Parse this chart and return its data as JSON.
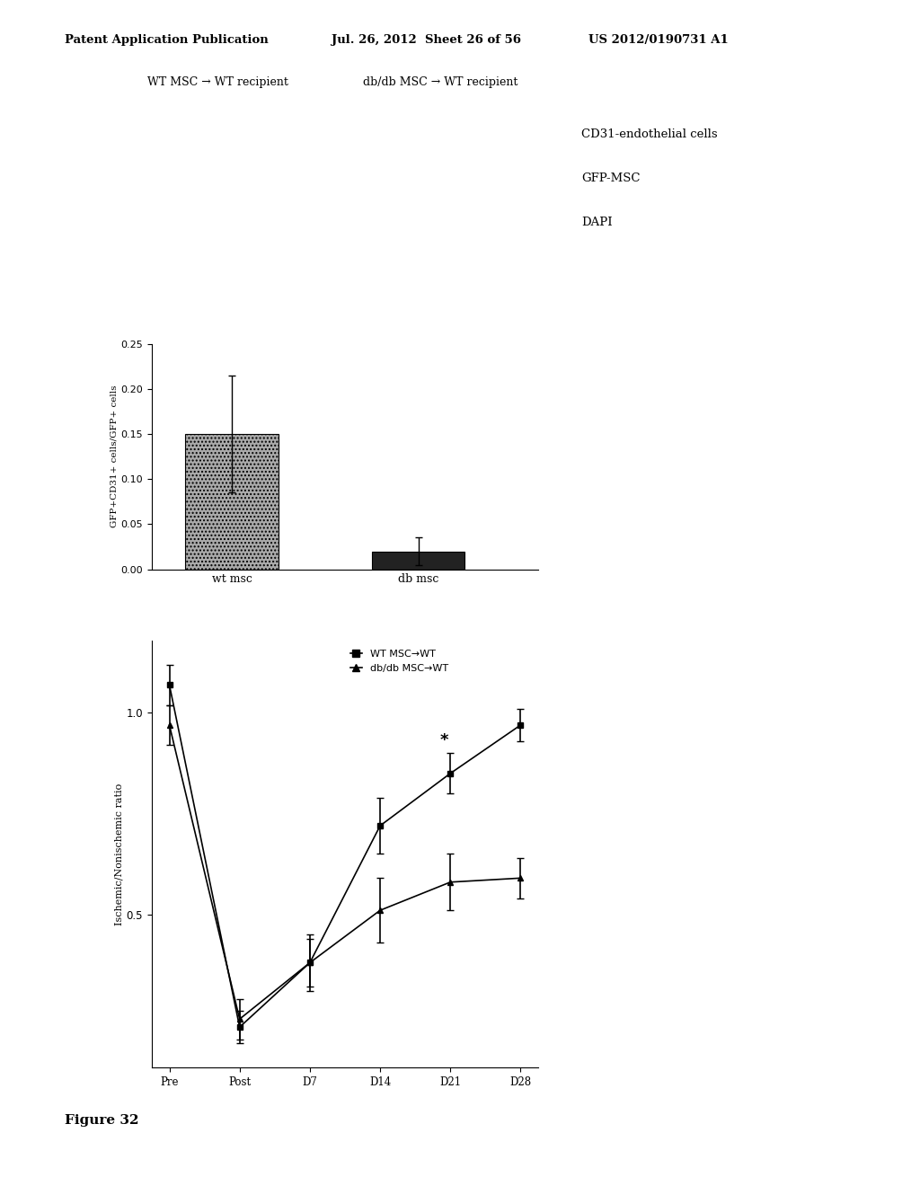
{
  "header_left": "Patent Application Publication",
  "header_mid": "Jul. 26, 2012  Sheet 26 of 56",
  "header_right": "US 2012/0190731 A1",
  "figure_label": "Figure 32",
  "panel_top_left_title": "WT MSC → WT recipient",
  "panel_top_right_title": "db/db MSC → WT recipient",
  "legend_items": [
    "CD31-endothelial cells",
    "GFP-MSC",
    "DAPI"
  ],
  "bar_categories": [
    "wt msc",
    "db msc"
  ],
  "bar_values": [
    0.15,
    0.02
  ],
  "bar_errors": [
    0.065,
    0.015
  ],
  "bar_ylabel": "GFP+CD31+ cells/GFP+ cells",
  "bar_ylim": [
    0,
    0.25
  ],
  "bar_yticks": [
    0,
    0.05,
    0.1,
    0.15,
    0.2,
    0.25
  ],
  "line_xlabel_ticks": [
    "Pre",
    "Post",
    "D7",
    "D14",
    "D21",
    "D28"
  ],
  "line_ylabel": "Ischemic/Nonischemic ratio",
  "line_ylim": [
    0.12,
    1.18
  ],
  "line_yticks": [
    0.5,
    1.0
  ],
  "wt_msc_values": [
    1.07,
    0.22,
    0.38,
    0.72,
    0.85,
    0.97
  ],
  "wt_msc_errors": [
    0.05,
    0.04,
    0.06,
    0.07,
    0.05,
    0.04
  ],
  "db_msc_values": [
    0.97,
    0.24,
    0.38,
    0.51,
    0.58,
    0.59
  ],
  "db_msc_errors": [
    0.05,
    0.05,
    0.07,
    0.08,
    0.07,
    0.05
  ],
  "legend_wt": "WT MSC→WT",
  "legend_db": "db/db MSC→WT",
  "star_index": 4,
  "star_index2": 5,
  "background_color": "#ffffff"
}
